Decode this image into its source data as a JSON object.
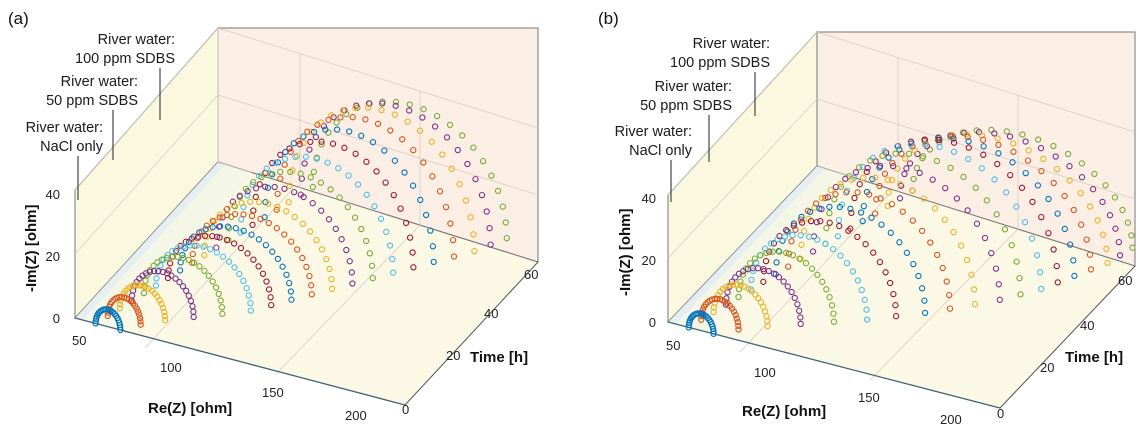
{
  "figure": {
    "panels": [
      {
        "letter": "(a)",
        "zlabel": "-Im(Z) [ohm]",
        "xlabel": "Re(Z) [ohm]",
        "ylabel": "Time [h]",
        "annotations": [
          {
            "line1": "River water:",
            "line2": "100 ppm SDBS"
          },
          {
            "line1": "River water:",
            "line2": "50 ppm SDBS"
          },
          {
            "line1": "River water:",
            "line2": "NaCl only"
          }
        ]
      },
      {
        "letter": "(b)",
        "zlabel": "-Im(Z) [ohm]",
        "xlabel": "Re(Z) [ohm]",
        "ylabel": "Time [h]",
        "annotations": [
          {
            "line1": "River water:",
            "line2": "100 ppm SDBS"
          },
          {
            "line1": "River water:",
            "line2": "50 ppm SDBS"
          },
          {
            "line1": "River water:",
            "line2": "NaCl only"
          }
        ]
      }
    ]
  },
  "chart_data": [
    {
      "type": "scatter",
      "panel": "(a)",
      "title": "",
      "xlabel": "Re(Z) [ohm]",
      "ylabel": "Time [h]",
      "zlabel": "-Im(Z) [ohm]",
      "xlim": [
        40,
        200
      ],
      "ylim": [
        0,
        72
      ],
      "zlim": [
        0,
        45
      ],
      "x_ticks": [
        50,
        100,
        150,
        200
      ],
      "y_ticks": [
        0,
        20,
        40,
        60
      ],
      "z_ticks": [
        0,
        20,
        40
      ],
      "grid": true,
      "regions": [
        {
          "label": "River water: NaCl only",
          "time_range": [
            0,
            4
          ]
        },
        {
          "label": "River water: 50 ppm SDBS",
          "time_range": [
            4,
            18
          ]
        },
        {
          "label": "River water: 100 ppm SDBS",
          "time_range": [
            18,
            72
          ]
        }
      ],
      "series_colors": [
        "#0072BD",
        "#D95319",
        "#EDB120",
        "#7E2F8E",
        "#77AC30",
        "#4DBEEE",
        "#A2142F"
      ],
      "nyquist_arcs": [
        {
          "t": 0,
          "r0": 50,
          "r1": 62,
          "peak": 6
        },
        {
          "t": 4,
          "r0": 52,
          "r1": 68,
          "peak": 8
        },
        {
          "t": 8,
          "r0": 54,
          "r1": 76,
          "peak": 10
        },
        {
          "t": 12,
          "r0": 56,
          "r1": 86,
          "peak": 13
        },
        {
          "t": 16,
          "r0": 58,
          "r1": 96,
          "peak": 16
        },
        {
          "t": 20,
          "r0": 60,
          "r1": 106,
          "peak": 18
        },
        {
          "t": 24,
          "r0": 62,
          "r1": 112,
          "peak": 19
        },
        {
          "t": 28,
          "r0": 64,
          "r1": 118,
          "peak": 20
        },
        {
          "t": 32,
          "r0": 66,
          "r1": 124,
          "peak": 22
        },
        {
          "t": 36,
          "r0": 68,
          "r1": 130,
          "peak": 24
        },
        {
          "t": 40,
          "r0": 70,
          "r1": 136,
          "peak": 27
        },
        {
          "t": 44,
          "r0": 72,
          "r1": 142,
          "peak": 30
        },
        {
          "t": 48,
          "r0": 74,
          "r1": 148,
          "peak": 33
        },
        {
          "t": 52,
          "r0": 76,
          "r1": 154,
          "peak": 36
        },
        {
          "t": 56,
          "r0": 78,
          "r1": 160,
          "peak": 38
        },
        {
          "t": 60,
          "r0": 80,
          "r1": 166,
          "peak": 40
        },
        {
          "t": 64,
          "r0": 82,
          "r1": 172,
          "peak": 41
        },
        {
          "t": 68,
          "r0": 84,
          "r1": 176,
          "peak": 40
        },
        {
          "t": 72,
          "r0": 86,
          "r1": 180,
          "peak": 38
        }
      ]
    },
    {
      "type": "scatter",
      "panel": "(b)",
      "title": "",
      "xlabel": "Re(Z) [ohm]",
      "ylabel": "Time [h]",
      "zlabel": "-Im(Z) [ohm]",
      "xlim": [
        40,
        200
      ],
      "ylim": [
        0,
        72
      ],
      "zlim": [
        0,
        45
      ],
      "x_ticks": [
        50,
        100,
        150,
        200
      ],
      "y_ticks": [
        0,
        20,
        40,
        60
      ],
      "z_ticks": [
        0,
        20,
        40
      ],
      "grid": true,
      "regions": [
        {
          "label": "River water: NaCl only",
          "time_range": [
            0,
            4
          ]
        },
        {
          "label": "River water: 50 ppm SDBS",
          "time_range": [
            4,
            18
          ]
        },
        {
          "label": "River water: 100 ppm SDBS",
          "time_range": [
            18,
            72
          ]
        }
      ],
      "series_colors": [
        "#0072BD",
        "#D95319",
        "#EDB120",
        "#7E2F8E",
        "#77AC30",
        "#4DBEEE",
        "#A2142F"
      ],
      "nyquist_arcs": [
        {
          "t": 0,
          "r0": 50,
          "r1": 62,
          "peak": 6
        },
        {
          "t": 4,
          "r0": 52,
          "r1": 70,
          "peak": 9
        },
        {
          "t": 8,
          "r0": 54,
          "r1": 80,
          "peak": 12
        },
        {
          "t": 12,
          "r0": 56,
          "r1": 92,
          "peak": 16
        },
        {
          "t": 16,
          "r0": 58,
          "r1": 104,
          "peak": 20
        },
        {
          "t": 20,
          "r0": 60,
          "r1": 116,
          "peak": 24
        },
        {
          "t": 24,
          "r0": 62,
          "r1": 126,
          "peak": 27
        },
        {
          "t": 28,
          "r0": 64,
          "r1": 136,
          "peak": 30
        },
        {
          "t": 32,
          "r0": 66,
          "r1": 144,
          "peak": 33
        },
        {
          "t": 36,
          "r0": 68,
          "r1": 152,
          "peak": 36
        },
        {
          "t": 40,
          "r0": 70,
          "r1": 160,
          "peak": 38
        },
        {
          "t": 44,
          "r0": 72,
          "r1": 166,
          "peak": 40
        },
        {
          "t": 48,
          "r0": 74,
          "r1": 172,
          "peak": 41
        },
        {
          "t": 52,
          "r0": 76,
          "r1": 176,
          "peak": 40
        },
        {
          "t": 56,
          "r0": 78,
          "r1": 180,
          "peak": 38
        },
        {
          "t": 60,
          "r0": 80,
          "r1": 184,
          "peak": 36
        },
        {
          "t": 64,
          "r0": 82,
          "r1": 188,
          "peak": 34
        },
        {
          "t": 68,
          "r0": 84,
          "r1": 190,
          "peak": 32
        },
        {
          "t": 72,
          "r0": 86,
          "r1": 192,
          "peak": 30
        }
      ]
    }
  ]
}
